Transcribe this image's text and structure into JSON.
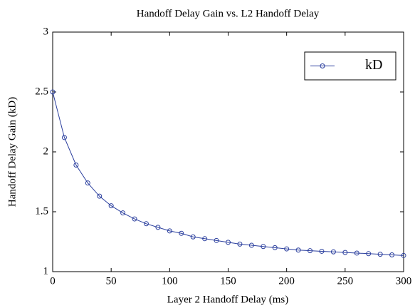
{
  "chart_data": {
    "type": "line",
    "title": "Handoff Delay Gain vs. L2 Handoff Delay",
    "x_label": "Layer 2 Handoff Delay (ms)",
    "y_label": "Handoff Delay Gain (kD)",
    "x": [
      0,
      10,
      20,
      30,
      40,
      50,
      60,
      70,
      80,
      90,
      100,
      110,
      120,
      130,
      140,
      150,
      160,
      170,
      180,
      190,
      200,
      210,
      220,
      230,
      240,
      250,
      260,
      270,
      280,
      290,
      300
    ],
    "series": [
      {
        "name": "kD",
        "color": "#2b3f9e",
        "values": [
          2.5,
          2.12,
          1.89,
          1.74,
          1.63,
          1.55,
          1.49,
          1.44,
          1.4,
          1.37,
          1.34,
          1.32,
          1.29,
          1.275,
          1.26,
          1.245,
          1.23,
          1.22,
          1.21,
          1.2,
          1.19,
          1.18,
          1.175,
          1.17,
          1.165,
          1.16,
          1.155,
          1.15,
          1.145,
          1.14,
          1.135
        ]
      }
    ],
    "xlim": [
      0,
      300
    ],
    "xticks": [
      0,
      50,
      100,
      150,
      200,
      250,
      300
    ],
    "ylim": [
      1,
      3
    ],
    "yticks": [
      1,
      1.5,
      2,
      2.5,
      3
    ],
    "legend": "upper right",
    "grid": false
  }
}
